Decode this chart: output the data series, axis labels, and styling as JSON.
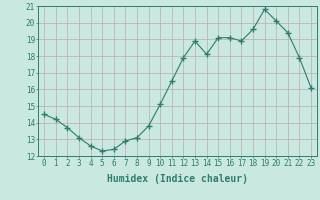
{
  "x": [
    0,
    1,
    2,
    3,
    4,
    5,
    6,
    7,
    8,
    9,
    10,
    11,
    12,
    13,
    14,
    15,
    16,
    17,
    18,
    19,
    20,
    21,
    22,
    23
  ],
  "y": [
    14.5,
    14.2,
    13.7,
    13.1,
    12.6,
    12.3,
    12.4,
    12.9,
    13.1,
    13.8,
    15.1,
    16.5,
    17.9,
    18.9,
    18.1,
    19.1,
    19.1,
    18.9,
    19.6,
    20.8,
    20.1,
    19.4,
    17.9,
    16.1
  ],
  "line_color": "#2e7d6e",
  "marker": "+",
  "marker_size": 4,
  "bg_color": "#c8e8e0",
  "grid_color": "#c0a8b0",
  "xlabel": "Humidex (Indice chaleur)",
  "ylim": [
    12,
    21
  ],
  "xlim": [
    -0.5,
    23.5
  ],
  "yticks": [
    12,
    13,
    14,
    15,
    16,
    17,
    18,
    19,
    20,
    21
  ],
  "xticks": [
    0,
    1,
    2,
    3,
    4,
    5,
    6,
    7,
    8,
    9,
    10,
    11,
    12,
    13,
    14,
    15,
    16,
    17,
    18,
    19,
    20,
    21,
    22,
    23
  ],
  "tick_label_size": 5.5,
  "xlabel_size": 7,
  "xlabel_weight": "bold"
}
